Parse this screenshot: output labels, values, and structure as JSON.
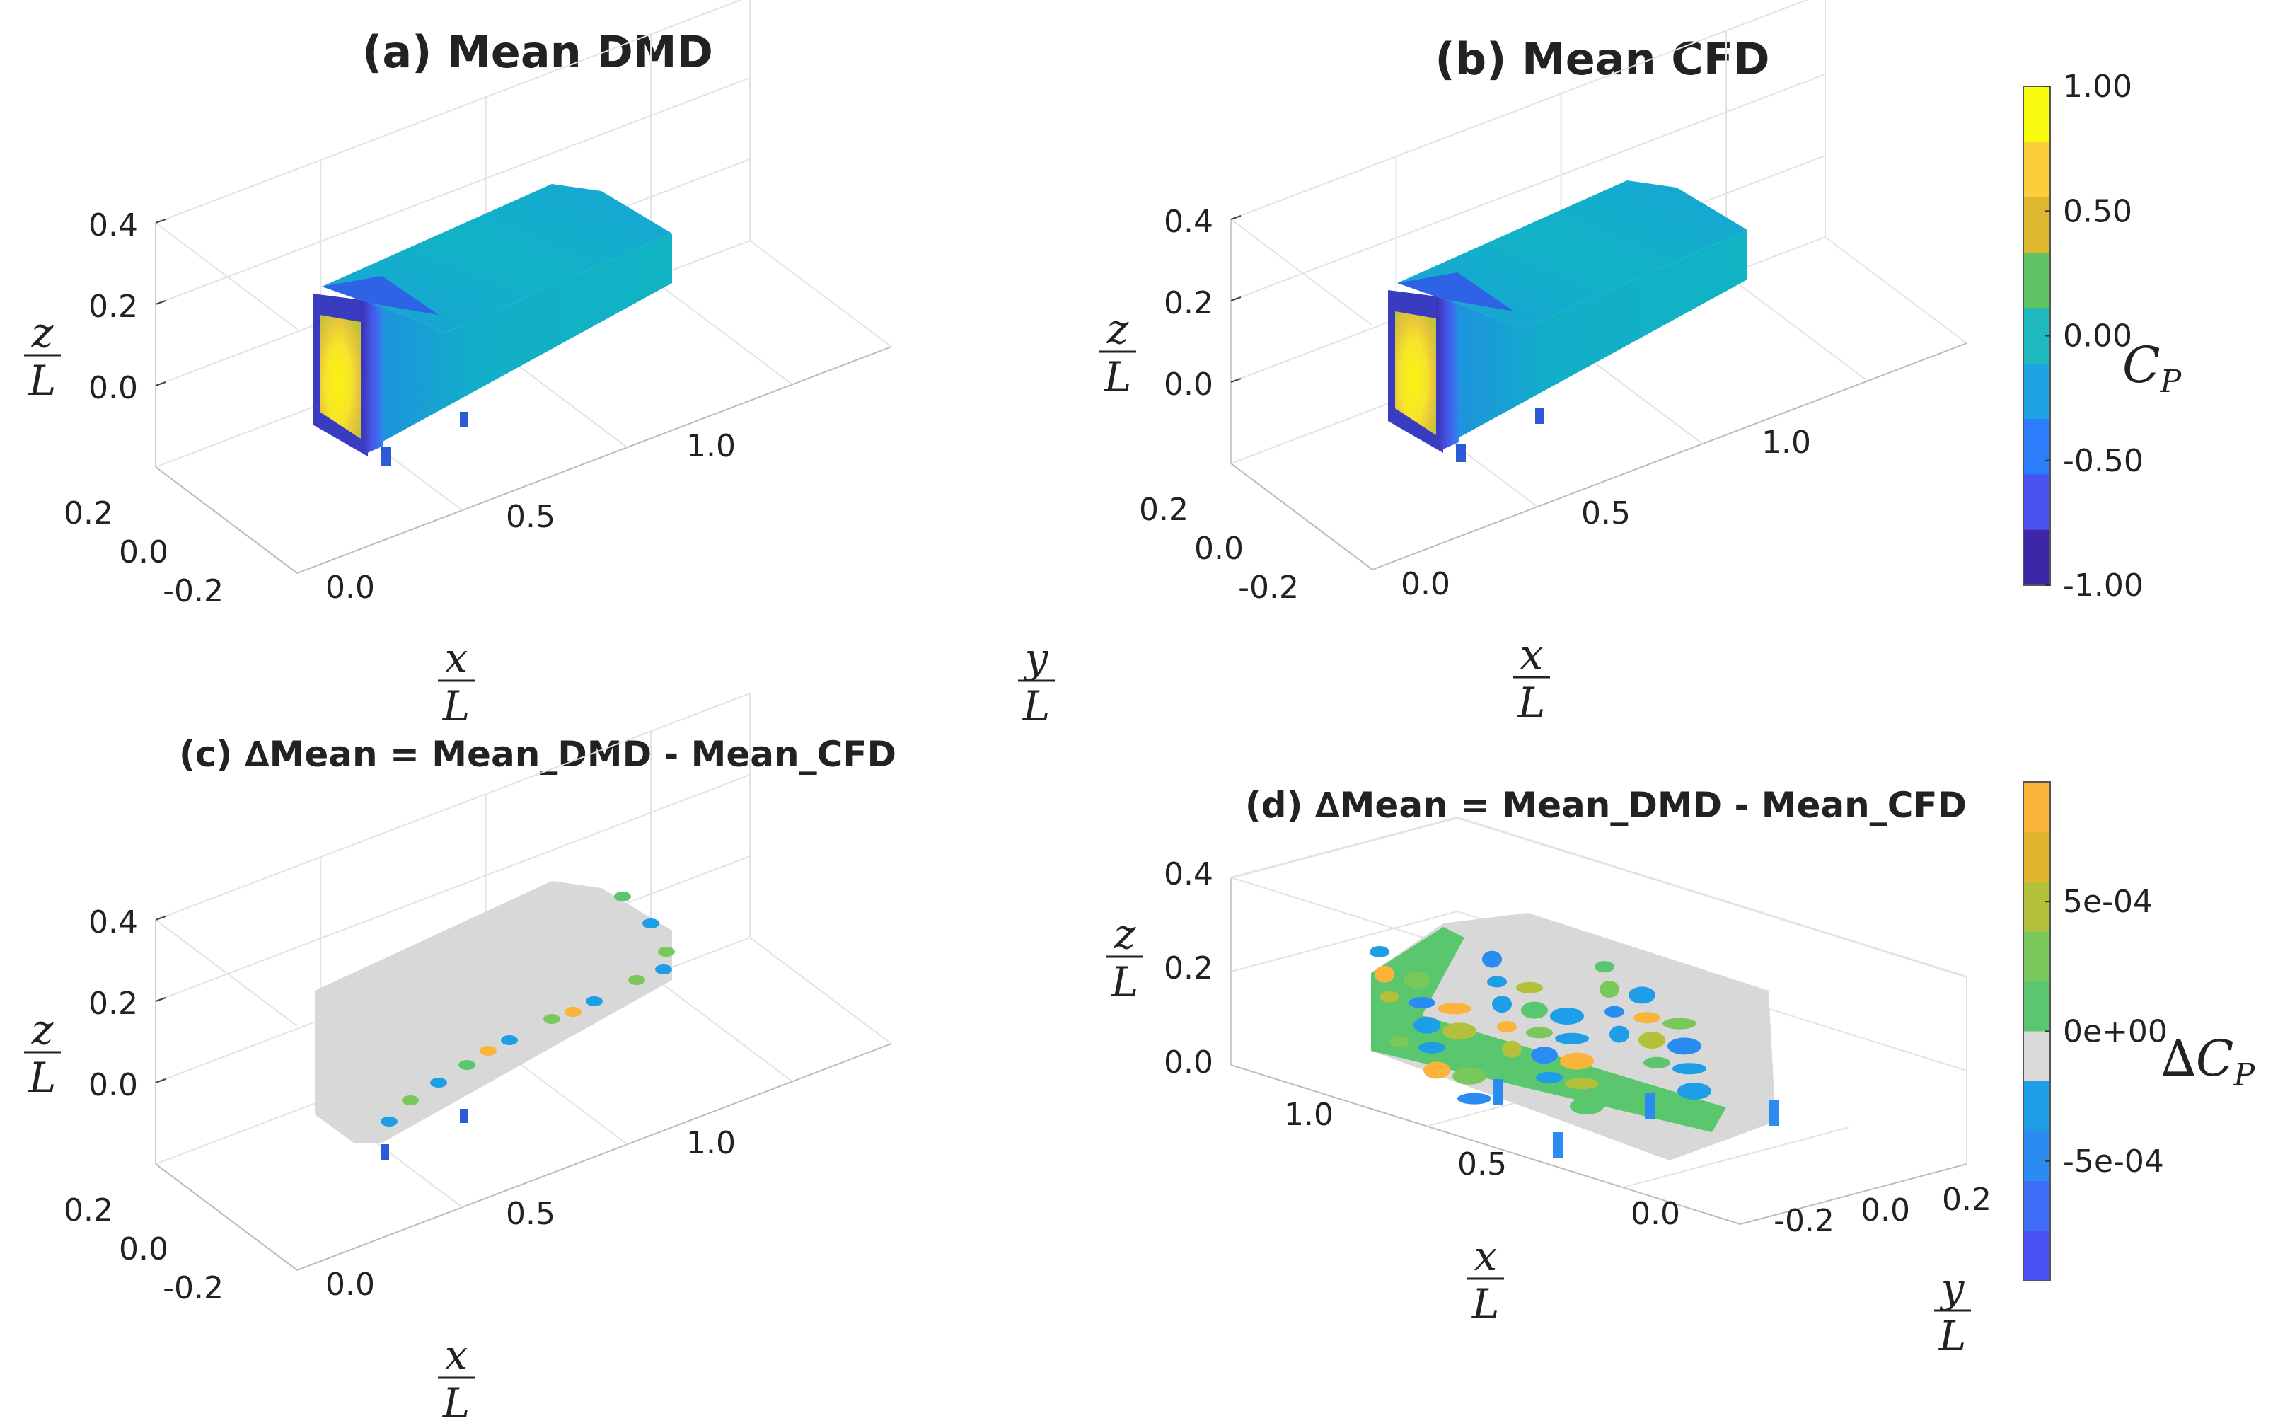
{
  "chart_data": [
    {
      "type": "surface3d",
      "panel": "a",
      "title": "(a) Mean DMD",
      "axes": {
        "x": {
          "label_num": "x",
          "label_den": "L",
          "ticks": [
            "0.0",
            "0.5",
            "1.0"
          ]
        },
        "y": {
          "label_num": "y",
          "label_den": "L",
          "ticks": [
            "0.2",
            "0.0",
            "-0.2"
          ]
        },
        "z": {
          "label_num": "z",
          "label_den": "L",
          "ticks": [
            "0.4",
            "0.2",
            "0.0"
          ]
        }
      },
      "grid": true,
      "field": "Cp",
      "field_range": [
        -1.0,
        1.0
      ],
      "view": "front-left, nose stagnation yellow, sides cyan"
    },
    {
      "type": "surface3d",
      "panel": "b",
      "title": "(b) Mean CFD",
      "axes": {
        "x": {
          "label_num": "x",
          "label_den": "L",
          "ticks": [
            "0.0",
            "0.5",
            "1.0"
          ]
        },
        "y": {
          "label_num": "y",
          "label_den": "L",
          "ticks": [
            "0.2",
            "0.0",
            "-0.2"
          ]
        },
        "z": {
          "label_num": "z",
          "label_den": "L",
          "ticks": [
            "0.4",
            "0.2",
            "0.0"
          ]
        }
      },
      "grid": true,
      "field": "Cp",
      "field_range": [
        -1.0,
        1.0
      ]
    },
    {
      "type": "surface3d",
      "panel": "c",
      "title": "(c) ∆Mean = Mean_DMD - Mean_CFD",
      "axes": {
        "x": {
          "label_num": "x",
          "label_den": "L",
          "ticks": [
            "0.0",
            "0.5",
            "1.0"
          ]
        },
        "y": {
          "label_num": "y",
          "label_den": "L",
          "ticks": [
            "0.2",
            "0.0",
            "-0.2"
          ]
        },
        "z": {
          "label_num": "z",
          "label_den": "L",
          "ticks": [
            "0.4",
            "0.2",
            "0.0"
          ]
        }
      },
      "grid": true,
      "field": "delta Cp"
    },
    {
      "type": "surface3d",
      "panel": "d",
      "title": "(d) ∆Mean = Mean_DMD - Mean_CFD",
      "axes": {
        "x": {
          "label_num": "x",
          "label_den": "L",
          "ticks": [
            "1.0",
            "0.5",
            "0.0"
          ]
        },
        "y": {
          "label_num": "y",
          "label_den": "L",
          "ticks": [
            "-0.2",
            "0.0",
            "0.2"
          ]
        },
        "z": {
          "label_num": "z",
          "label_den": "L",
          "ticks": [
            "0.4",
            "0.2",
            "0.0"
          ]
        }
      },
      "grid": true,
      "field": "delta Cp",
      "view": "underbody"
    }
  ],
  "colorbars": [
    {
      "label": "C",
      "label_sub": "P",
      "ticks": [
        "1.00",
        "0.50",
        "0.00",
        "-0.50",
        "-1.00"
      ],
      "range": [
        -1.0,
        1.0
      ],
      "colors": [
        "#f9fb0e",
        "#fccd39",
        "#ddb82f",
        "#5fc466",
        "#1fbabf",
        "#1ea3e4",
        "#2c7dfc",
        "#4a53f2",
        "#3e26a8"
      ]
    },
    {
      "label": "∆C",
      "label_sub": "P",
      "ticks": [
        "5e-04",
        "0e+00",
        "-5e-04"
      ],
      "range": [
        -0.001,
        0.001
      ],
      "colors": [
        "#fbb33a",
        "#e1b52b",
        "#b3c03a",
        "#7bc85a",
        "#5ac66d",
        "#d9d9d9",
        "#1d9ee6",
        "#2a8bf0",
        "#3f6df7",
        "#4a52f5"
      ]
    }
  ]
}
